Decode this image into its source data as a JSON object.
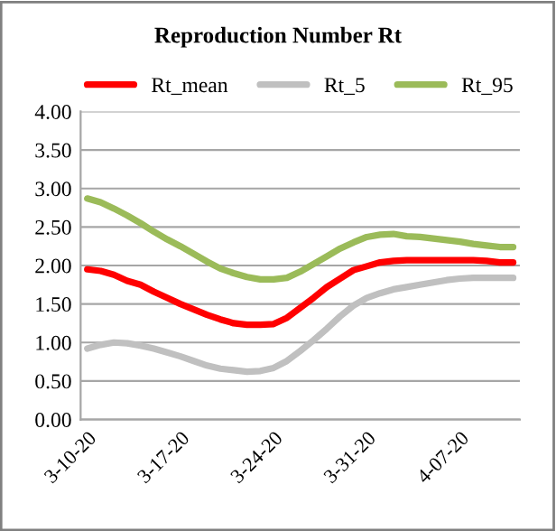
{
  "chart_data": {
    "type": "line",
    "title": "Reproduction Number Rt",
    "legend": "top",
    "grid": "y",
    "line_style": "solid",
    "marker": "none",
    "categories": [
      "3-10-20",
      null,
      null,
      null,
      null,
      null,
      null,
      "3-17-20",
      null,
      null,
      null,
      null,
      null,
      null,
      "3-24-20",
      null,
      null,
      null,
      null,
      null,
      null,
      "3-31-20",
      null,
      null,
      null,
      null,
      null,
      null,
      "4-07-20",
      null,
      null,
      null,
      null
    ],
    "ylim": [
      0,
      4
    ],
    "yticks": [
      {
        "value": 0,
        "label": "0.00"
      },
      {
        "value": 0.5,
        "label": "0.50"
      },
      {
        "value": 1,
        "label": "1.00"
      },
      {
        "value": 1.5,
        "label": "1.50"
      },
      {
        "value": 2,
        "label": "2.00"
      },
      {
        "value": 2.5,
        "label": "2.50"
      },
      {
        "value": 3,
        "label": "3.00"
      },
      {
        "value": 3.5,
        "label": "3.50"
      },
      {
        "value": 4,
        "label": "4.00"
      }
    ],
    "series": [
      {
        "name": "Rt_mean",
        "color": "#ff0000",
        "values": [
          1.95,
          1.93,
          1.88,
          1.8,
          1.75,
          1.66,
          1.58,
          1.5,
          1.43,
          1.36,
          1.3,
          1.25,
          1.23,
          1.23,
          1.24,
          1.32,
          1.45,
          1.58,
          1.72,
          1.83,
          1.94,
          1.99,
          2.04,
          2.06,
          2.07,
          2.07,
          2.07,
          2.07,
          2.07,
          2.07,
          2.06,
          2.04,
          2.04
        ]
      },
      {
        "name": "Rt_5",
        "color": "#c0c0c0",
        "values": [
          0.92,
          0.97,
          1.0,
          0.99,
          0.96,
          0.92,
          0.87,
          0.82,
          0.76,
          0.7,
          0.66,
          0.64,
          0.62,
          0.63,
          0.67,
          0.76,
          0.89,
          1.03,
          1.18,
          1.34,
          1.48,
          1.58,
          1.64,
          1.69,
          1.72,
          1.75,
          1.78,
          1.81,
          1.83,
          1.84,
          1.84,
          1.84,
          1.84
        ]
      },
      {
        "name": "Rt_95",
        "color": "#9bbb59",
        "values": [
          2.87,
          2.82,
          2.74,
          2.65,
          2.55,
          2.44,
          2.34,
          2.25,
          2.15,
          2.05,
          1.96,
          1.9,
          1.85,
          1.82,
          1.82,
          1.84,
          1.92,
          2.02,
          2.12,
          2.22,
          2.3,
          2.37,
          2.4,
          2.41,
          2.38,
          2.37,
          2.35,
          2.33,
          2.31,
          2.28,
          2.26,
          2.24,
          2.24
        ]
      }
    ]
  }
}
